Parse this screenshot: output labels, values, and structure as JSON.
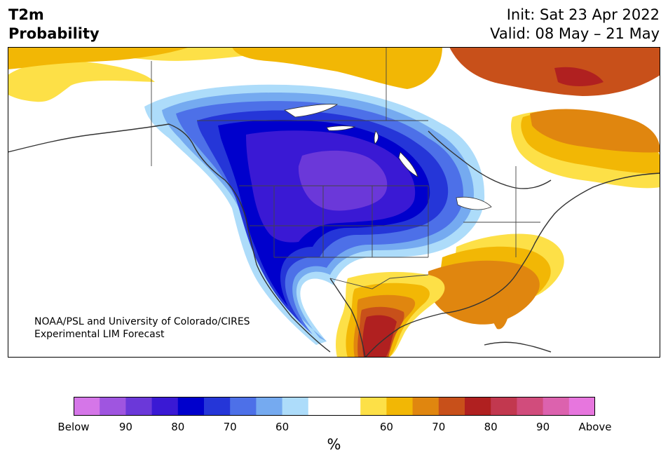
{
  "title": {
    "line1": "T2m",
    "line2": "Probability"
  },
  "meta": {
    "init": "Init: Sat 23 Apr 2022",
    "valid": "Valid: 08 May – 21 May"
  },
  "credit": {
    "line1": "NOAA/PSL and University of Colorado/CIRES",
    "line2": "Experimental LIM Forecast"
  },
  "colorbar": {
    "colors": [
      "#d576e8",
      "#9f55e0",
      "#6b38d9",
      "#3a19d4",
      "#0000cc",
      "#2536d8",
      "#4d70e8",
      "#75aaf0",
      "#addcfa",
      "#ffffff",
      "#ffffff",
      "#fde047",
      "#f2b705",
      "#e0860f",
      "#c8501a",
      "#b02020",
      "#c2384f",
      "#d14c7c",
      "#dc62ae",
      "#e776de"
    ],
    "tick_labels": [
      "Below",
      "90",
      "80",
      "70",
      "60",
      "60",
      "70",
      "80",
      "90",
      "Above"
    ],
    "unit": "%"
  },
  "palette": {
    "cold_strong": "#6b38d9",
    "cold": "#0000cc",
    "warm": "#e0860f",
    "warm_strong": "#b02020",
    "border": "#333333"
  }
}
